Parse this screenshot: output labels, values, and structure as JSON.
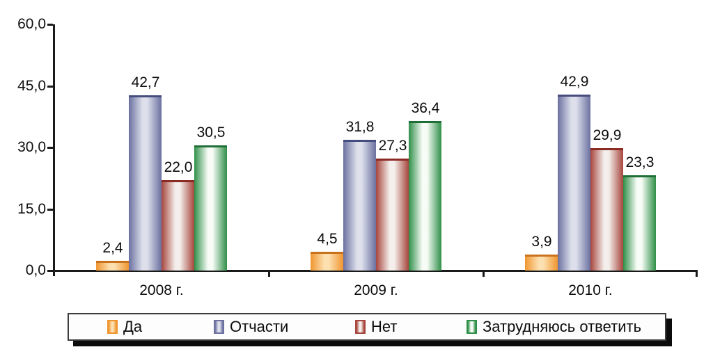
{
  "chart_data": {
    "type": "bar",
    "title": "",
    "categories": [
      "2008 г.",
      "2009 г.",
      "2010 г."
    ],
    "series": [
      {
        "name": "Да",
        "values": [
          2.4,
          4.5,
          3.9
        ],
        "value_labels": [
          "2,4",
          "4,5",
          "3,9"
        ],
        "color_edge": "#F0952F",
        "color_light": "#FCE0B0",
        "color_top": "#C8731C"
      },
      {
        "name": "Отчасти",
        "values": [
          42.7,
          31.8,
          42.9
        ],
        "value_labels": [
          "42,7",
          "31,8",
          "42,9"
        ],
        "color_edge": "#6B70A0",
        "color_light": "#DDE0EB",
        "color_top": "#474C7E"
      },
      {
        "name": "Нет",
        "values": [
          22.0,
          27.3,
          29.9
        ],
        "value_labels": [
          "22,0",
          "27,3",
          "29,9"
        ],
        "color_edge": "#A6453C",
        "color_light": "#F4EFEC",
        "color_top": "#8C2B23"
      },
      {
        "name": "Затрудняюсь ответить",
        "values": [
          30.5,
          36.4,
          23.3
        ],
        "value_labels": [
          "30,5",
          "36,4",
          "23,3"
        ],
        "color_edge": "#2F8F48",
        "color_light": "#F8FCF7",
        "color_top": "#1F6E36"
      }
    ],
    "y_axis": {
      "min": 0,
      "max": 60,
      "tick_values": [
        60,
        45,
        30,
        15,
        0
      ],
      "tick_labels": [
        "60,0",
        "45,0",
        "30,0",
        "15,0",
        "0,0"
      ]
    },
    "legend": {
      "position": "bottom",
      "items": [
        "Да",
        "Отчасти",
        "Нет",
        "Затрудняюсь ответить"
      ]
    },
    "grid": false,
    "decimal_separator": ","
  }
}
